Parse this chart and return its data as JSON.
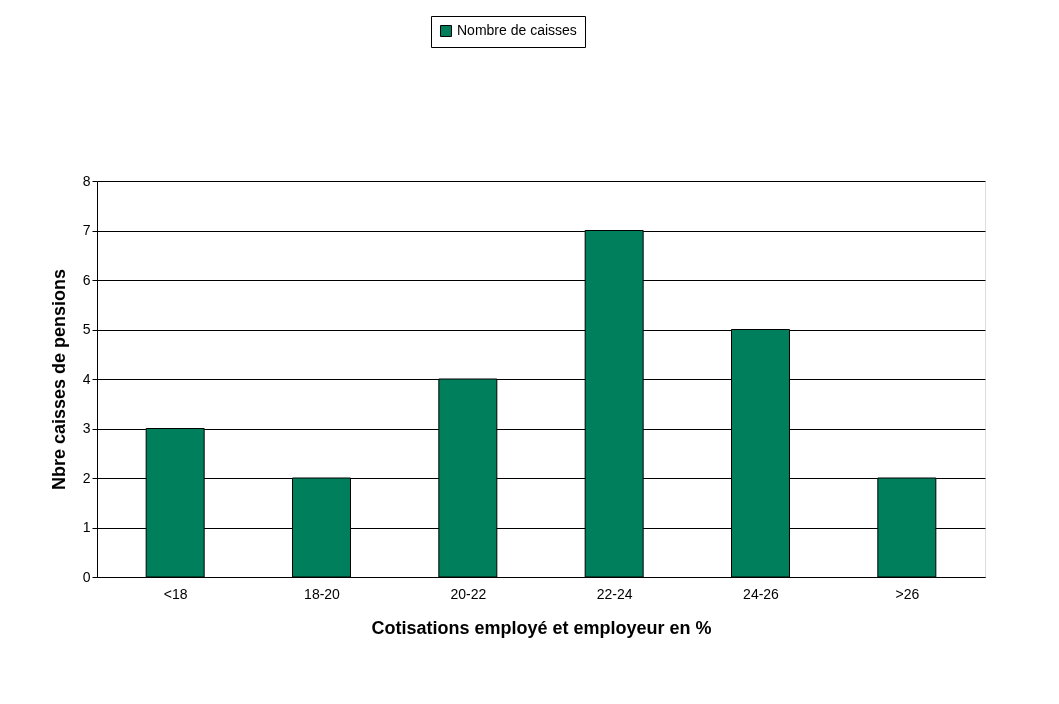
{
  "chart_data": {
    "type": "bar",
    "xlabel": "Cotisations employé et employeur en %",
    "ylabel": "Nbre caisses de pensions",
    "categories": [
      "<18",
      "18-20",
      "20-22",
      "22-24",
      "24-26",
      ">26"
    ],
    "series": [
      {
        "name": "Nombre de caisses",
        "color": "#007f5c",
        "values": [
          3,
          2,
          4,
          7,
          5,
          2
        ]
      }
    ],
    "ylim": [
      0,
      8
    ],
    "yticks": [
      0,
      1,
      2,
      3,
      4,
      5,
      6,
      7,
      8
    ],
    "grid": "y",
    "legend": "top"
  }
}
